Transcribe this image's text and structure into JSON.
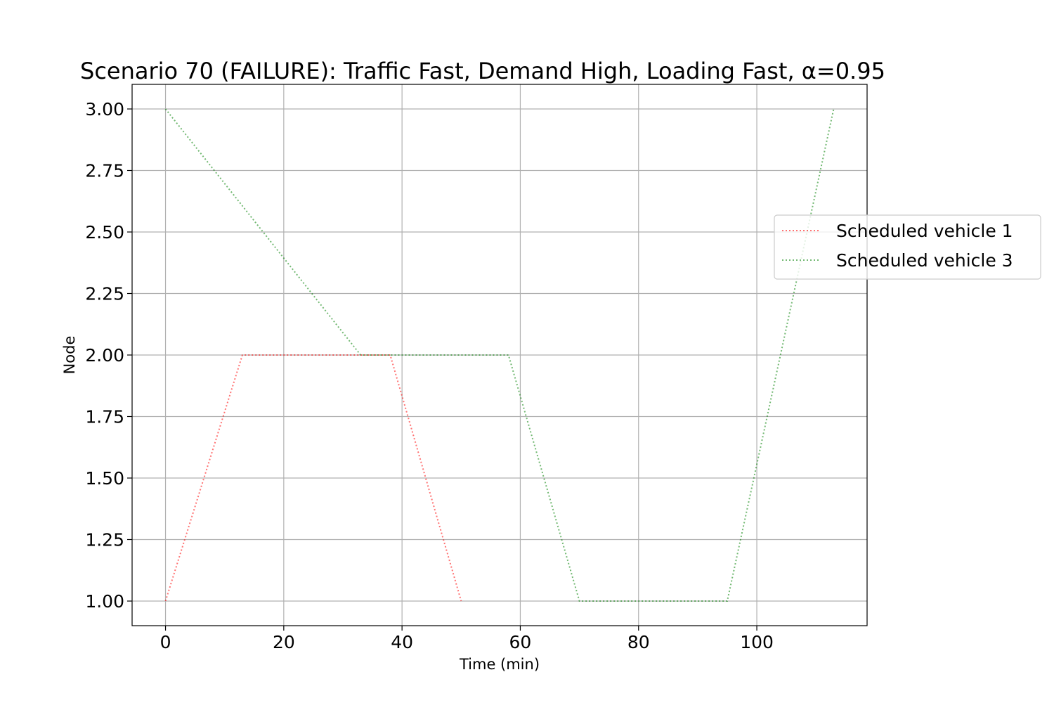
{
  "chart_data": {
    "type": "line",
    "title": "Scenario 70 (FAILURE): Traffic Fast, Demand High, Loading Fast, α=0.95",
    "xlabel": "Time (min)",
    "ylabel": "Node",
    "xlim": [
      -5.65,
      118.65
    ],
    "ylim": [
      0.9,
      3.1
    ],
    "x_ticks": [
      0,
      20,
      40,
      60,
      80,
      100
    ],
    "x_tick_labels": [
      "0",
      "20",
      "40",
      "60",
      "80",
      "100"
    ],
    "y_ticks": [
      1.0,
      1.25,
      1.5,
      1.75,
      2.0,
      2.25,
      2.5,
      2.75,
      3.0
    ],
    "y_tick_labels": [
      "1.00",
      "1.25",
      "1.50",
      "1.75",
      "2.00",
      "2.25",
      "2.50",
      "2.75",
      "3.00"
    ],
    "grid": true,
    "legend_position": "right, outside plot edge",
    "series": [
      {
        "name": "Scheduled vehicle 1",
        "color": "#ff0000",
        "line_style": "dotted",
        "x": [
          0,
          13,
          38,
          50
        ],
        "y": [
          1,
          2,
          2,
          1
        ]
      },
      {
        "name": "Scheduled vehicle 3",
        "color": "#008000",
        "line_style": "dotted",
        "x": [
          0,
          33,
          58,
          70,
          95,
          113
        ],
        "y": [
          3,
          2,
          2,
          1,
          1,
          3
        ]
      }
    ]
  }
}
